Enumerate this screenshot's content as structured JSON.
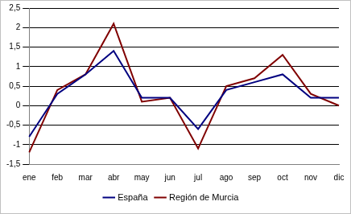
{
  "chart_data": {
    "type": "line",
    "categories": [
      "ene",
      "feb",
      "mar",
      "abr",
      "may",
      "jun",
      "jul",
      "ago",
      "sep",
      "oct",
      "nov",
      "dic"
    ],
    "series": [
      {
        "name": "España",
        "color": "#000080",
        "values": [
          -0.8,
          0.3,
          0.8,
          1.4,
          0.2,
          0.2,
          -0.6,
          0.4,
          0.6,
          0.8,
          0.2,
          0.2
        ]
      },
      {
        "name": "Región de Murcia",
        "color": "#800000",
        "values": [
          -1.2,
          0.4,
          0.8,
          2.1,
          0.1,
          0.2,
          -1.1,
          0.5,
          0.7,
          1.3,
          0.3,
          0.0
        ]
      }
    ],
    "ylim": [
      -1.5,
      2.5
    ],
    "yticks": [
      {
        "value": -1.5,
        "label": "-1,5"
      },
      -1,
      {
        "value": -0.5,
        "label": "-0,5"
      },
      0,
      {
        "value": 0.5,
        "label": "0,5"
      },
      1,
      {
        "value": 1.5,
        "label": "1,5"
      },
      2,
      {
        "value": 2.5,
        "label": "2,5"
      }
    ],
    "grid": true,
    "legend": "bottom"
  }
}
